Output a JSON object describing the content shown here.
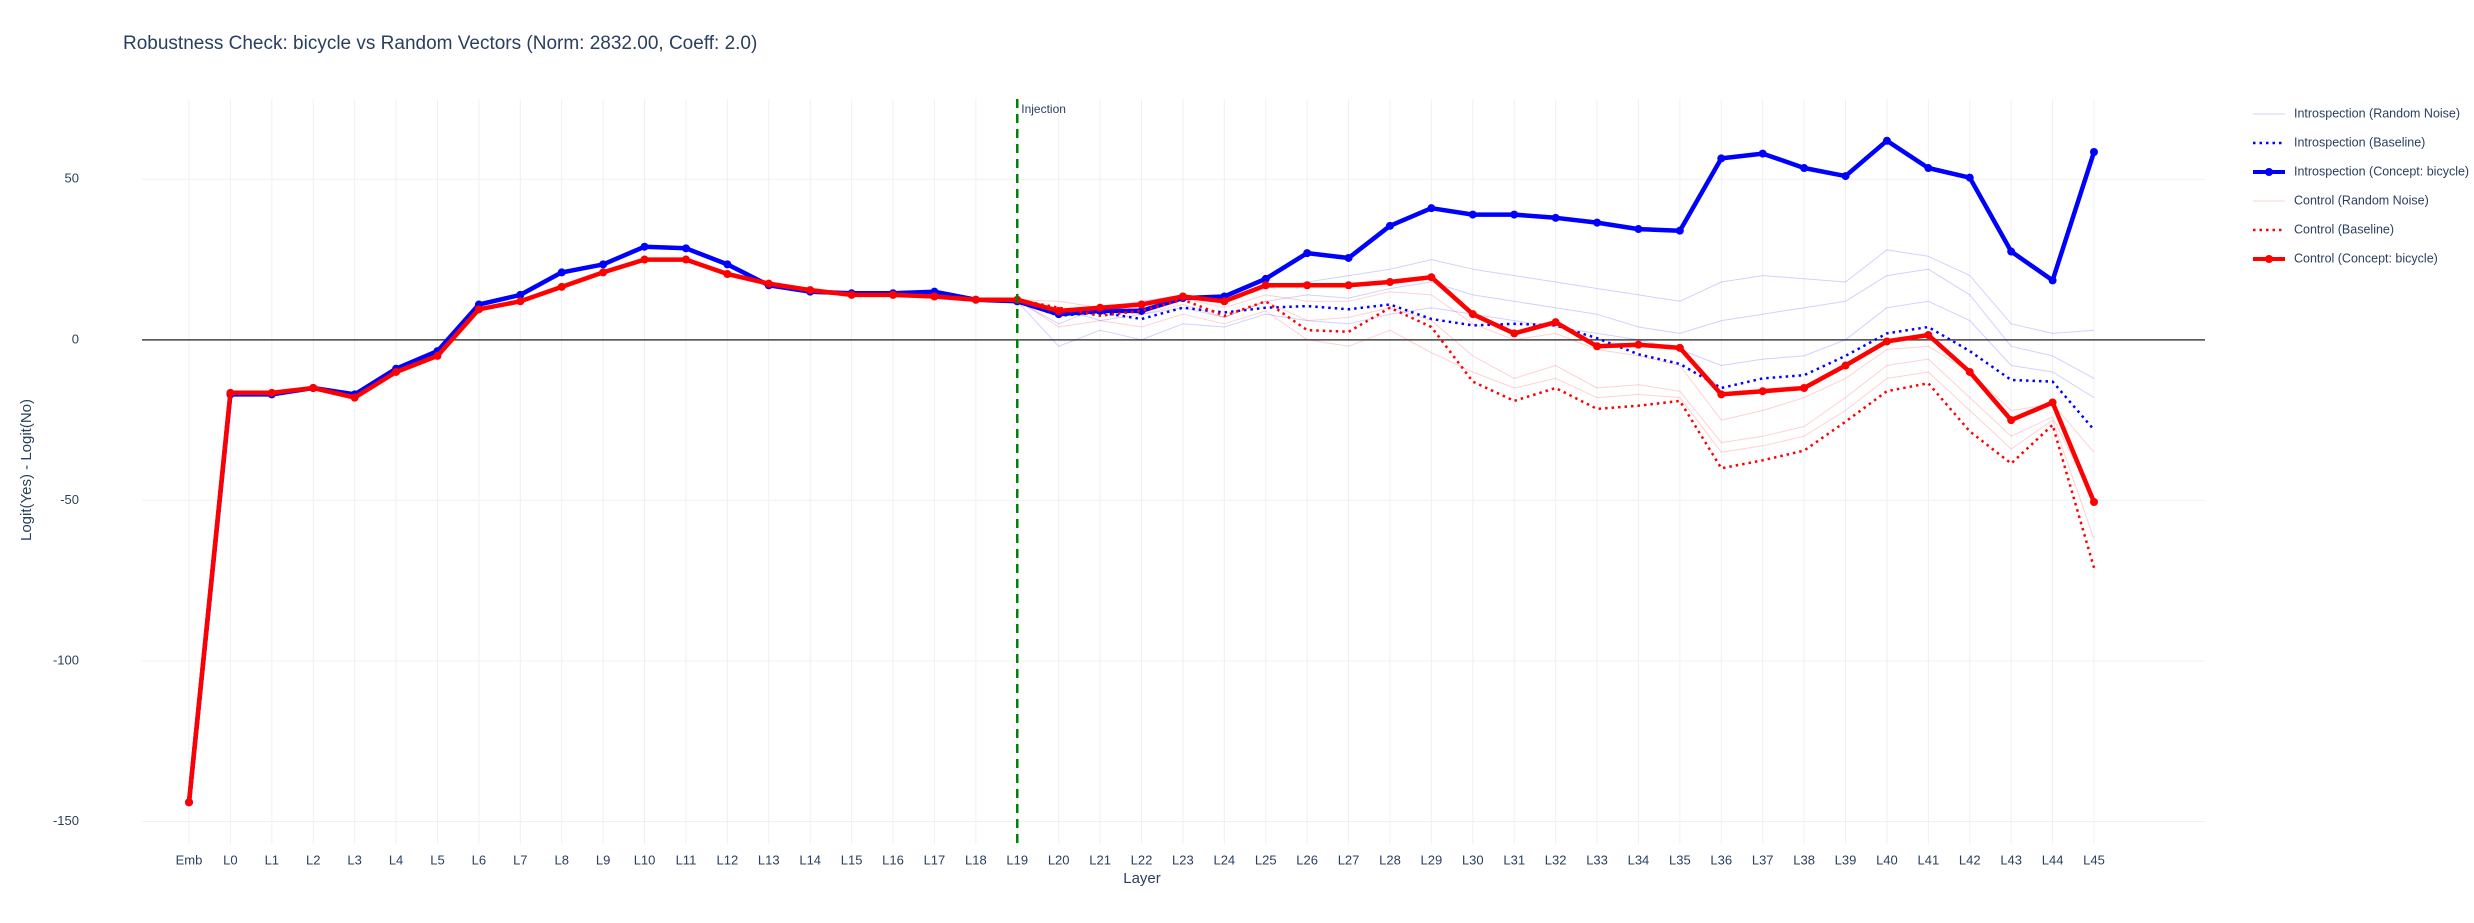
{
  "chart_data": {
    "type": "line",
    "title": "Robustness Check: bicycle vs Random Vectors (Norm: 2832.00, Coeff: 2.0)",
    "x_label": "Layer",
    "y_label": "Logit(Yes) - Logit(No)",
    "categories": [
      "Emb",
      "L0",
      "L1",
      "L2",
      "L3",
      "L4",
      "L5",
      "L6",
      "L7",
      "L8",
      "L9",
      "L10",
      "L11",
      "L12",
      "L13",
      "L14",
      "L15",
      "L16",
      "L17",
      "L18",
      "L19",
      "L20",
      "L21",
      "L22",
      "L23",
      "L24",
      "L25",
      "L26",
      "L27",
      "L28",
      "L29",
      "L30",
      "L31",
      "L32",
      "L33",
      "L34",
      "L35",
      "L36",
      "L37",
      "L38",
      "L39",
      "L40",
      "L41",
      "L42",
      "L43",
      "L44",
      "L45"
    ],
    "ylim": [
      -157,
      75
    ],
    "yticks": [
      -150,
      -100,
      -50,
      0,
      50
    ],
    "grid": true,
    "zeroline": true,
    "legend": "right",
    "vline": {
      "x": "L19",
      "label": "Injection",
      "color": "#008000"
    },
    "series": [
      {
        "name": "Introspection (Random Noise)",
        "color": "#0000ff",
        "width": 1,
        "opacity": 0.18,
        "runs": [
          [
            -144,
            -17,
            -17,
            -15,
            -17,
            -9,
            -3.5,
            11,
            14,
            21,
            23.5,
            29,
            28.5,
            23.5,
            17,
            15,
            14.5,
            14.5,
            15,
            12.5,
            12,
            5,
            10,
            12,
            14,
            12,
            16,
            18,
            20,
            22,
            25,
            22,
            20,
            18,
            16,
            14,
            12,
            18,
            20,
            19,
            18,
            28,
            26,
            20,
            5,
            2,
            3
          ],
          [
            -144,
            -17,
            -17,
            -15,
            -17,
            -9,
            -3.5,
            11,
            14,
            21,
            23.5,
            29,
            28.5,
            23.5,
            17,
            15,
            14.5,
            14.5,
            15,
            12.5,
            12,
            10,
            6,
            8,
            10,
            7,
            12,
            14,
            13,
            16,
            18,
            14,
            12,
            10,
            8,
            4,
            2,
            6,
            8,
            10,
            12,
            20,
            22,
            14,
            -2,
            -5,
            -12
          ],
          [
            -144,
            -17,
            -17,
            -15,
            -17,
            -9,
            -3.5,
            11,
            14,
            21,
            23.5,
            29,
            28.5,
            23.5,
            17,
            15,
            14.5,
            14.5,
            15,
            12.5,
            12,
            -2,
            3,
            0,
            5,
            4,
            8,
            6,
            5,
            8,
            10,
            8,
            6,
            4,
            2,
            0,
            -3,
            -8,
            -6,
            -5,
            0,
            10,
            12,
            6,
            -8,
            -10,
            -18
          ]
        ]
      },
      {
        "name": "Introspection (Baseline)",
        "color": "#0000ff",
        "width": 2.5,
        "dash": "dot",
        "values": [
          -144,
          -17,
          -17,
          -15,
          -17,
          -9,
          -3.5,
          11,
          14,
          21,
          23.5,
          29,
          28.5,
          23.5,
          17,
          15,
          14.5,
          14.5,
          15,
          12.5,
          12,
          7.5,
          8.5,
          6.5,
          10,
          8.5,
          10,
          10.5,
          9.5,
          11,
          6.5,
          4.5,
          5,
          4.5,
          0.5,
          -4.5,
          -7.5,
          -15,
          -12,
          -11,
          -5,
          2,
          4,
          -3.5,
          -12.5,
          -13,
          -28
        ]
      },
      {
        "name": "Introspection (Concept: bicycle)",
        "color": "#0000ff",
        "width": 4.5,
        "markers": true,
        "values": [
          -144,
          -17,
          -17,
          -15,
          -17,
          -9,
          -3.5,
          11,
          14,
          21,
          23.5,
          29,
          28.5,
          23.5,
          17,
          15,
          14.5,
          14.5,
          15,
          12.5,
          12,
          8,
          9,
          9,
          13,
          13.5,
          19,
          27,
          25.5,
          35.5,
          41,
          39,
          39,
          38,
          36.5,
          34.5,
          34,
          56.5,
          58,
          53.5,
          51,
          62,
          53.5,
          50.5,
          27.5,
          18.5,
          58.5
        ]
      },
      {
        "name": "Control (Random Noise)",
        "color": "#ff0000",
        "width": 1,
        "opacity": 0.18,
        "runs": [
          [
            -144,
            -16.5,
            -16.5,
            -15,
            -18,
            -10,
            -5,
            9.5,
            12,
            16.5,
            21,
            25,
            25,
            20.5,
            17.5,
            15.5,
            14,
            14,
            13.5,
            12.5,
            12.5,
            8,
            9,
            10,
            13,
            10,
            14,
            12,
            12,
            15,
            14,
            5,
            0,
            2,
            -3,
            -5,
            -8,
            -25,
            -22,
            -18,
            -12,
            -3,
            -2,
            -10,
            -22,
            -20,
            -35
          ],
          [
            -144,
            -16.5,
            -16.5,
            -15,
            -18,
            -10,
            -5,
            9.5,
            12,
            16.5,
            21,
            25,
            25,
            20.5,
            17.5,
            15.5,
            14,
            14,
            13.5,
            12.5,
            12.5,
            12,
            10,
            8,
            11,
            7,
            12,
            6,
            7,
            10,
            6,
            -5,
            -12,
            -8,
            -15,
            -14,
            -16,
            -32,
            -30,
            -27,
            -18,
            -8,
            -6,
            -18,
            -30,
            -24,
            -50
          ],
          [
            -144,
            -16.5,
            -16.5,
            -15,
            -18,
            -10,
            -5,
            9.5,
            12,
            16.5,
            21,
            25,
            25,
            20.5,
            17.5,
            15.5,
            14,
            14,
            13.5,
            12.5,
            12.5,
            4,
            6,
            4,
            8,
            5,
            9,
            0,
            -2,
            3,
            -4,
            -10,
            -15,
            -12,
            -18,
            -17,
            -18,
            -35,
            -33,
            -30,
            -22,
            -12,
            -10,
            -22,
            -34,
            -25,
            -62
          ]
        ]
      },
      {
        "name": "Control (Baseline)",
        "color": "#ff0000",
        "width": 2.5,
        "dash": "dot",
        "values": [
          -144,
          -16.5,
          -16.5,
          -15,
          -18,
          -10,
          -5,
          9.5,
          12,
          16.5,
          21,
          25,
          25,
          20.5,
          17.5,
          15.5,
          14,
          14,
          13.5,
          12.5,
          12.5,
          10,
          7.5,
          9,
          12.5,
          7.5,
          12,
          3,
          2.5,
          10,
          4,
          -13,
          -19,
          -15,
          -21.5,
          -20.5,
          -19,
          -40,
          -37.5,
          -34.5,
          -25.5,
          -16,
          -13.5,
          -28.5,
          -38.5,
          -26.5,
          -71
        ]
      },
      {
        "name": "Control (Concept: bicycle)",
        "color": "#ff0000",
        "width": 4.5,
        "markers": true,
        "values": [
          -144,
          -16.5,
          -16.5,
          -15,
          -18,
          -10,
          -5,
          9.5,
          12,
          16.5,
          21,
          25,
          25,
          20.5,
          17.5,
          15.5,
          14,
          14,
          13.5,
          12.5,
          12.5,
          9,
          10,
          11,
          13.5,
          12,
          17,
          17,
          17,
          18,
          19.5,
          8,
          2,
          5.5,
          -2,
          -1.5,
          -2.5,
          -17,
          -16,
          -15,
          -8,
          -0.5,
          1.5,
          -10,
          -25,
          -19.5,
          -50.5
        ]
      }
    ]
  }
}
